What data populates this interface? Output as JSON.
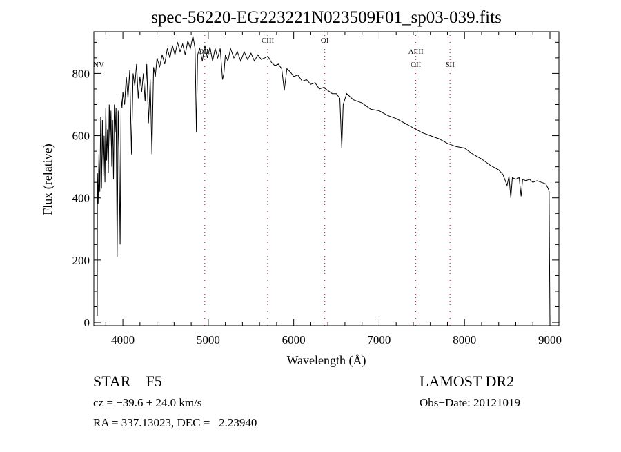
{
  "chart_data": {
    "type": "line",
    "title": "spec-56220-EG223221N023509F01_sp03-039.fits",
    "xlabel": "Wavelength (Å)",
    "ylabel": "Flux (relative)",
    "xlim": [
      3660,
      9105
    ],
    "ylim": [
      -11,
      934
    ],
    "xticks": [
      4000,
      5000,
      6000,
      7000,
      8000,
      9000
    ],
    "yticks": [
      0,
      200,
      400,
      600,
      800
    ],
    "grid": false,
    "lines": [
      {
        "label": "NV",
        "x": null
      },
      {
        "label": "OIII",
        "x": 4959
      },
      {
        "label": "CIII",
        "x": 5696
      },
      {
        "label": "OI",
        "x": 6364
      },
      {
        "label": "AlIII",
        "x": 7430
      },
      {
        "label": "OII",
        "x": 7430
      },
      {
        "label": "SII",
        "x": 7830
      }
    ],
    "spectrum": [
      [
        3700,
        20
      ],
      [
        3702,
        480
      ],
      [
        3710,
        380
      ],
      [
        3720,
        540
      ],
      [
        3730,
        420
      ],
      [
        3740,
        660
      ],
      [
        3750,
        430
      ],
      [
        3760,
        650
      ],
      [
        3770,
        470
      ],
      [
        3780,
        600
      ],
      [
        3790,
        450
      ],
      [
        3800,
        690
      ],
      [
        3810,
        520
      ],
      [
        3820,
        620
      ],
      [
        3830,
        480
      ],
      [
        3840,
        700
      ],
      [
        3850,
        560
      ],
      [
        3860,
        680
      ],
      [
        3870,
        500
      ],
      [
        3880,
        650
      ],
      [
        3890,
        460
      ],
      [
        3900,
        700
      ],
      [
        3910,
        610
      ],
      [
        3920,
        690
      ],
      [
        3933,
        210
      ],
      [
        3945,
        680
      ],
      [
        3955,
        560
      ],
      [
        3968,
        250
      ],
      [
        3980,
        720
      ],
      [
        3990,
        690
      ],
      [
        4000,
        740
      ],
      [
        4020,
        700
      ],
      [
        4040,
        790
      ],
      [
        4060,
        720
      ],
      [
        4080,
        810
      ],
      [
        4101,
        540
      ],
      [
        4120,
        800
      ],
      [
        4140,
        760
      ],
      [
        4160,
        830
      ],
      [
        4180,
        720
      ],
      [
        4200,
        790
      ],
      [
        4220,
        740
      ],
      [
        4240,
        800
      ],
      [
        4260,
        710
      ],
      [
        4280,
        830
      ],
      [
        4300,
        640
      ],
      [
        4320,
        780
      ],
      [
        4340,
        540
      ],
      [
        4360,
        820
      ],
      [
        4380,
        790
      ],
      [
        4400,
        850
      ],
      [
        4430,
        820
      ],
      [
        4460,
        860
      ],
      [
        4490,
        830
      ],
      [
        4520,
        880
      ],
      [
        4550,
        850
      ],
      [
        4580,
        890
      ],
      [
        4610,
        860
      ],
      [
        4640,
        900
      ],
      [
        4670,
        870
      ],
      [
        4700,
        895
      ],
      [
        4730,
        860
      ],
      [
        4760,
        905
      ],
      [
        4790,
        880
      ],
      [
        4820,
        920
      ],
      [
        4845,
        880
      ],
      [
        4861,
        610
      ],
      [
        4875,
        860
      ],
      [
        4900,
        880
      ],
      [
        4930,
        840
      ],
      [
        4960,
        890
      ],
      [
        4990,
        850
      ],
      [
        5020,
        885
      ],
      [
        5050,
        840
      ],
      [
        5080,
        880
      ],
      [
        5110,
        850
      ],
      [
        5140,
        880
      ],
      [
        5167,
        780
      ],
      [
        5183,
        800
      ],
      [
        5200,
        860
      ],
      [
        5230,
        840
      ],
      [
        5260,
        880
      ],
      [
        5300,
        850
      ],
      [
        5340,
        870
      ],
      [
        5380,
        840
      ],
      [
        5420,
        870
      ],
      [
        5460,
        845
      ],
      [
        5500,
        865
      ],
      [
        5540,
        840
      ],
      [
        5580,
        860
      ],
      [
        5620,
        845
      ],
      [
        5660,
        850
      ],
      [
        5700,
        855
      ],
      [
        5740,
        835
      ],
      [
        5780,
        825
      ],
      [
        5820,
        830
      ],
      [
        5860,
        815
      ],
      [
        5890,
        745
      ],
      [
        5920,
        815
      ],
      [
        5960,
        805
      ],
      [
        6000,
        790
      ],
      [
        6050,
        795
      ],
      [
        6100,
        775
      ],
      [
        6150,
        780
      ],
      [
        6200,
        765
      ],
      [
        6250,
        770
      ],
      [
        6300,
        750
      ],
      [
        6350,
        755
      ],
      [
        6400,
        745
      ],
      [
        6450,
        735
      ],
      [
        6500,
        735
      ],
      [
        6540,
        720
      ],
      [
        6563,
        560
      ],
      [
        6580,
        700
      ],
      [
        6620,
        735
      ],
      [
        6700,
        715
      ],
      [
        6800,
        705
      ],
      [
        6900,
        685
      ],
      [
        7000,
        680
      ],
      [
        7100,
        665
      ],
      [
        7200,
        655
      ],
      [
        7300,
        640
      ],
      [
        7400,
        625
      ],
      [
        7500,
        610
      ],
      [
        7600,
        600
      ],
      [
        7700,
        590
      ],
      [
        7800,
        575
      ],
      [
        7900,
        565
      ],
      [
        8000,
        560
      ],
      [
        8100,
        540
      ],
      [
        8200,
        525
      ],
      [
        8300,
        505
      ],
      [
        8400,
        490
      ],
      [
        8450,
        475
      ],
      [
        8498,
        440
      ],
      [
        8520,
        470
      ],
      [
        8542,
        400
      ],
      [
        8560,
        465
      ],
      [
        8600,
        460
      ],
      [
        8640,
        465
      ],
      [
        8662,
        405
      ],
      [
        8680,
        460
      ],
      [
        8720,
        455
      ],
      [
        8760,
        460
      ],
      [
        8800,
        450
      ],
      [
        8850,
        455
      ],
      [
        8900,
        450
      ],
      [
        8950,
        445
      ],
      [
        8980,
        430
      ],
      [
        8990,
        420
      ],
      [
        8995,
        200
      ],
      [
        9000,
        0
      ]
    ]
  },
  "info": {
    "class": "STAR",
    "subclass": "F5",
    "survey": "LAMOST DR2",
    "cz": "cz = −39.6 ± 24.0 km/s",
    "obs_date": "Obs−Date: 20121019",
    "coords": "RA = 337.13023, DEC =   2.23940"
  }
}
